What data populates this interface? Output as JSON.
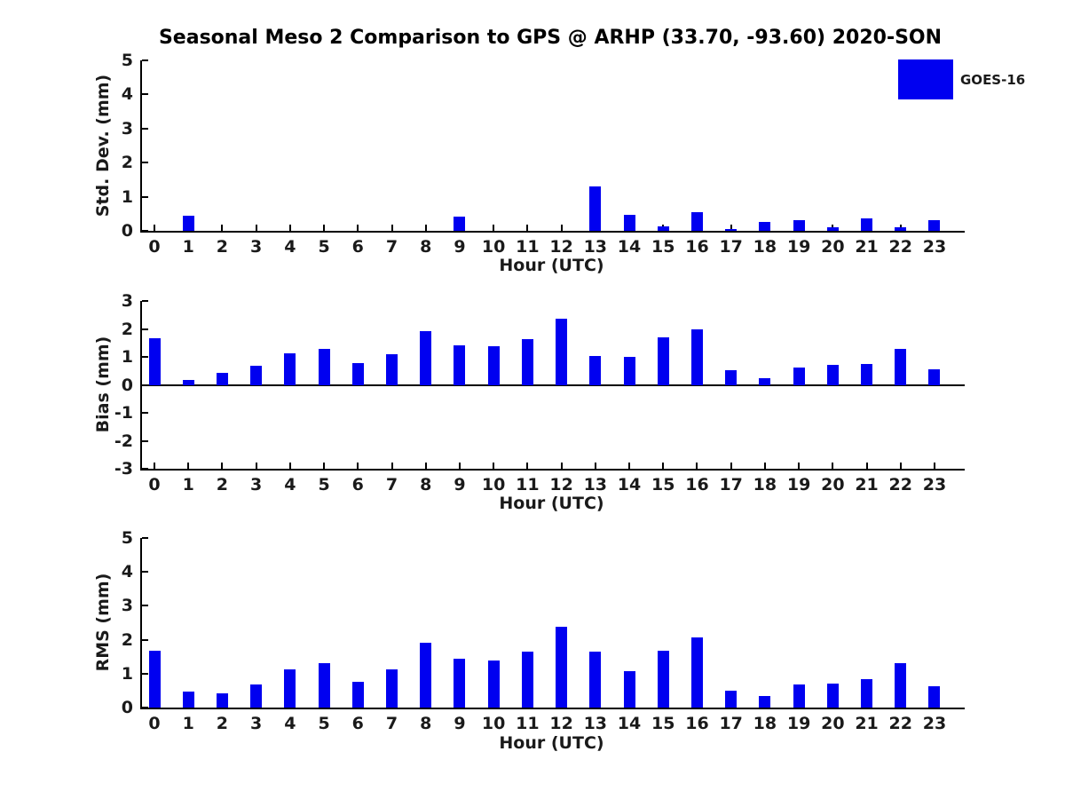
{
  "title": "Seasonal Meso 2 Comparison to GPS @ ARHP (33.70, -93.60) 2020-SON",
  "legend": {
    "label": "GOES-16"
  },
  "colors": {
    "bar": "#0000F0",
    "axis": "#000000",
    "text": "#1a1a1a"
  },
  "chart_data": [
    {
      "type": "bar",
      "title": "",
      "ylabel": "Std. Dev. (mm)",
      "xlabel": "Hour (UTC)",
      "categories": [
        "0",
        "1",
        "2",
        "3",
        "4",
        "5",
        "6",
        "7",
        "8",
        "9",
        "10",
        "11",
        "12",
        "13",
        "14",
        "15",
        "16",
        "17",
        "18",
        "19",
        "20",
        "21",
        "22",
        "23"
      ],
      "values": [
        0,
        0.45,
        0,
        0,
        0,
        0,
        0,
        0,
        0,
        0.42,
        0,
        0,
        0,
        1.3,
        0.47,
        0.12,
        0.55,
        0.04,
        0.27,
        0.32,
        0.1,
        0.37,
        0.1,
        0.32
      ],
      "ylim": [
        0,
        5
      ],
      "yticks": [
        0,
        1,
        2,
        3,
        4,
        5
      ],
      "grid": false,
      "legend_entries": [
        "GOES-16"
      ],
      "legend_position": "upper right"
    },
    {
      "type": "bar",
      "title": "",
      "ylabel": "Bias (mm)",
      "xlabel": "Hour (UTC)",
      "categories": [
        "0",
        "1",
        "2",
        "3",
        "4",
        "5",
        "6",
        "7",
        "8",
        "9",
        "10",
        "11",
        "12",
        "13",
        "14",
        "15",
        "16",
        "17",
        "18",
        "19",
        "20",
        "21",
        "22",
        "23"
      ],
      "values": [
        1.68,
        0.16,
        0.44,
        0.68,
        1.12,
        1.3,
        0.77,
        1.1,
        1.92,
        1.4,
        1.38,
        1.63,
        2.35,
        1.03,
        1.0,
        1.7,
        2.0,
        0.52,
        0.25,
        0.63,
        0.73,
        0.76,
        1.28,
        0.57
      ],
      "ylim": [
        -3,
        3
      ],
      "yticks": [
        -3,
        -2,
        -1,
        0,
        1,
        2,
        3
      ],
      "grid": false
    },
    {
      "type": "bar",
      "title": "",
      "ylabel": "RMS (mm)",
      "xlabel": "Hour (UTC)",
      "categories": [
        "0",
        "1",
        "2",
        "3",
        "4",
        "5",
        "6",
        "7",
        "8",
        "9",
        "10",
        "11",
        "12",
        "13",
        "14",
        "15",
        "16",
        "17",
        "18",
        "19",
        "20",
        "21",
        "22",
        "23"
      ],
      "values": [
        1.67,
        0.47,
        0.42,
        0.67,
        1.12,
        1.3,
        0.75,
        1.12,
        1.9,
        1.45,
        1.4,
        1.65,
        2.37,
        1.65,
        1.07,
        1.68,
        2.07,
        0.5,
        0.35,
        0.68,
        0.72,
        0.85,
        1.3,
        0.63
      ],
      "ylim": [
        0,
        5
      ],
      "yticks": [
        0,
        1,
        2,
        3,
        4,
        5
      ],
      "grid": false
    }
  ]
}
